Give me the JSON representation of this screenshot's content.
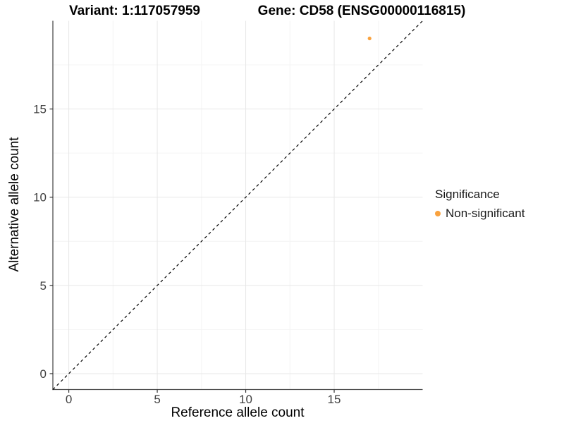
{
  "chart_data": {
    "type": "scatter",
    "titles": [
      "Variant: 1:117057959",
      "Gene: CD58 (ENSG00000116815)"
    ],
    "xlabel": "Reference allele count",
    "ylabel": "Alternative allele count",
    "xlim": [
      -0.9,
      20
    ],
    "ylim": [
      -0.9,
      20
    ],
    "x_ticks": [
      0,
      5,
      10,
      15
    ],
    "y_ticks": [
      0,
      5,
      10,
      15
    ],
    "x_minor": [
      2.5,
      7.5,
      12.5,
      17.5
    ],
    "y_minor": [
      2.5,
      7.5,
      12.5,
      17.5
    ],
    "grid": "major+minor",
    "reference_line": {
      "type": "identity",
      "style": "dashed",
      "from": -0.9,
      "to": 20,
      "color": "#000000"
    },
    "series": [
      {
        "name": "Non-significant",
        "color": "#F9A23E",
        "points": [
          {
            "x": 17,
            "y": 19
          }
        ]
      }
    ],
    "legend": {
      "title": "Significance",
      "position": "right",
      "items": [
        {
          "label": "Non-significant",
          "color": "#F9A23E"
        }
      ]
    },
    "colors": {
      "grid_major": "#e7e7e7",
      "grid_minor": "#f4f4f4",
      "axis_line": "#4d4d4d",
      "tick_mark": "#333333",
      "axis_text": "#404040",
      "axis_title": "#000000"
    }
  }
}
